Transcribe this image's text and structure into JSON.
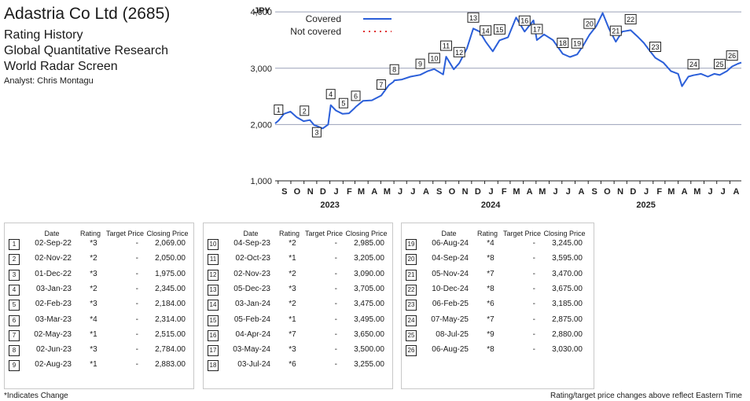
{
  "header": {
    "title": "Adastria Co Ltd (2685)",
    "subtitle1": "Rating History",
    "subtitle2": "Global Quantitative Research",
    "subtitle3": "World Radar Screen",
    "analyst": "Analyst: Chris Montagu"
  },
  "chart_data": {
    "type": "line",
    "ylabel": "JPY",
    "ylim": [
      1000,
      4100
    ],
    "yticks": [
      "1,000",
      "2,000",
      "3,000",
      "4,000"
    ],
    "xlim": [
      "2022-08-25",
      "2025-08-28"
    ],
    "month_labels": [
      "S",
      "O",
      "N",
      "D",
      "J",
      "F",
      "M",
      "A",
      "M",
      "J",
      "J",
      "A",
      "S",
      "O",
      "N",
      "D",
      "J",
      "F",
      "M",
      "A",
      "M",
      "J",
      "J",
      "A",
      "S",
      "O",
      "N",
      "D",
      "J",
      "F",
      "M",
      "A",
      "M",
      "J",
      "J",
      "A"
    ],
    "month_dates": [
      "2022-09-01",
      "2022-10-01",
      "2022-11-01",
      "2022-12-01",
      "2023-01-01",
      "2023-02-01",
      "2023-03-01",
      "2023-04-01",
      "2023-05-01",
      "2023-06-01",
      "2023-07-01",
      "2023-08-01",
      "2023-09-01",
      "2023-10-01",
      "2023-11-01",
      "2023-12-01",
      "2024-01-01",
      "2024-02-01",
      "2024-03-01",
      "2024-04-01",
      "2024-05-01",
      "2024-06-01",
      "2024-07-01",
      "2024-08-01",
      "2024-09-01",
      "2024-10-01",
      "2024-11-01",
      "2024-12-01",
      "2025-01-01",
      "2025-02-01",
      "2025-03-01",
      "2025-04-01",
      "2025-05-01",
      "2025-06-01",
      "2025-07-01",
      "2025-08-01"
    ],
    "year_labels": [
      "2023",
      "2024",
      "2025"
    ],
    "year_centers": [
      "2023-01-01",
      "2024-01-15",
      "2025-01-15"
    ],
    "legend": [
      {
        "name": "Covered",
        "style": "solid",
        "color": "#2b5fd9"
      },
      {
        "name": "Not covered",
        "style": "dotted",
        "color": "#e03030"
      }
    ],
    "grid": true,
    "series": [
      {
        "name": "Covered",
        "points": [
          [
            "2022-08-25",
            2020
          ],
          [
            "2022-09-02",
            2069
          ],
          [
            "2022-09-15",
            2190
          ],
          [
            "2022-09-30",
            2230
          ],
          [
            "2022-10-15",
            2130
          ],
          [
            "2022-10-31",
            2060
          ],
          [
            "2022-11-15",
            2080
          ],
          [
            "2022-11-25",
            1990
          ],
          [
            "2022-12-01",
            1975
          ],
          [
            "2022-12-15",
            1930
          ],
          [
            "2022-12-28",
            2000
          ],
          [
            "2023-01-03",
            2345
          ],
          [
            "2023-01-15",
            2250
          ],
          [
            "2023-01-31",
            2190
          ],
          [
            "2023-02-15",
            2200
          ],
          [
            "2023-02-28",
            2290
          ],
          [
            "2023-03-03",
            2314
          ],
          [
            "2023-03-20",
            2420
          ],
          [
            "2023-04-10",
            2430
          ],
          [
            "2023-04-28",
            2500
          ],
          [
            "2023-05-02",
            2515
          ],
          [
            "2023-05-20",
            2700
          ],
          [
            "2023-05-31",
            2760
          ],
          [
            "2023-06-02",
            2784
          ],
          [
            "2023-06-20",
            2800
          ],
          [
            "2023-07-10",
            2850
          ],
          [
            "2023-08-02",
            2883
          ],
          [
            "2023-08-20",
            2950
          ],
          [
            "2023-09-04",
            2985
          ],
          [
            "2023-09-25",
            2890
          ],
          [
            "2023-10-02",
            3205
          ],
          [
            "2023-10-20",
            2980
          ],
          [
            "2023-11-02",
            3090
          ],
          [
            "2023-11-20",
            3350
          ],
          [
            "2023-12-05",
            3705
          ],
          [
            "2023-12-20",
            3650
          ],
          [
            "2024-01-03",
            3475
          ],
          [
            "2024-01-20",
            3300
          ],
          [
            "2024-02-05",
            3495
          ],
          [
            "2024-02-25",
            3550
          ],
          [
            "2024-03-15",
            3900
          ],
          [
            "2024-04-04",
            3650
          ],
          [
            "2024-04-25",
            3850
          ],
          [
            "2024-05-03",
            3500
          ],
          [
            "2024-05-20",
            3600
          ],
          [
            "2024-06-10",
            3500
          ],
          [
            "2024-07-03",
            3255
          ],
          [
            "2024-07-20",
            3200
          ],
          [
            "2024-08-06",
            3245
          ],
          [
            "2024-08-20",
            3400
          ],
          [
            "2024-09-04",
            3595
          ],
          [
            "2024-09-20",
            3750
          ],
          [
            "2024-10-05",
            3980
          ],
          [
            "2024-10-20",
            3700
          ],
          [
            "2024-11-05",
            3470
          ],
          [
            "2024-11-20",
            3650
          ],
          [
            "2024-12-10",
            3675
          ],
          [
            "2024-12-28",
            3550
          ],
          [
            "2025-01-10",
            3450
          ],
          [
            "2025-01-25",
            3300
          ],
          [
            "2025-02-06",
            3185
          ],
          [
            "2025-02-25",
            3100
          ],
          [
            "2025-03-15",
            2950
          ],
          [
            "2025-04-01",
            2900
          ],
          [
            "2025-04-10",
            2680
          ],
          [
            "2025-04-25",
            2850
          ],
          [
            "2025-05-07",
            2875
          ],
          [
            "2025-05-25",
            2900
          ],
          [
            "2025-06-10",
            2850
          ],
          [
            "2025-06-25",
            2900
          ],
          [
            "2025-07-08",
            2880
          ],
          [
            "2025-07-25",
            2950
          ],
          [
            "2025-08-06",
            3030
          ],
          [
            "2025-08-20",
            3080
          ],
          [
            "2025-08-28",
            3100
          ]
        ]
      }
    ],
    "markers": [
      {
        "n": "1",
        "date": "2022-09-02",
        "value": 2069
      },
      {
        "n": "2",
        "date": "2022-11-02",
        "value": 2050
      },
      {
        "n": "3",
        "date": "2022-12-01",
        "value": 1975
      },
      {
        "n": "4",
        "date": "2023-01-03",
        "value": 2345
      },
      {
        "n": "5",
        "date": "2023-02-02",
        "value": 2184
      },
      {
        "n": "6",
        "date": "2023-03-03",
        "value": 2314
      },
      {
        "n": "7",
        "date": "2023-05-02",
        "value": 2515
      },
      {
        "n": "8",
        "date": "2023-06-02",
        "value": 2784
      },
      {
        "n": "9",
        "date": "2023-08-02",
        "value": 2883
      },
      {
        "n": "10",
        "date": "2023-09-04",
        "value": 2985
      },
      {
        "n": "11",
        "date": "2023-10-02",
        "value": 3205
      },
      {
        "n": "12",
        "date": "2023-11-02",
        "value": 3090
      },
      {
        "n": "13",
        "date": "2023-12-05",
        "value": 3705
      },
      {
        "n": "14",
        "date": "2024-01-03",
        "value": 3475
      },
      {
        "n": "15",
        "date": "2024-02-05",
        "value": 3495
      },
      {
        "n": "16",
        "date": "2024-04-04",
        "value": 3650
      },
      {
        "n": "17",
        "date": "2024-05-03",
        "value": 3500
      },
      {
        "n": "18",
        "date": "2024-07-03",
        "value": 3255
      },
      {
        "n": "19",
        "date": "2024-08-06",
        "value": 3245
      },
      {
        "n": "20",
        "date": "2024-09-04",
        "value": 3595
      },
      {
        "n": "21",
        "date": "2024-11-05",
        "value": 3470
      },
      {
        "n": "22",
        "date": "2024-12-10",
        "value": 3675
      },
      {
        "n": "23",
        "date": "2025-02-06",
        "value": 3185
      },
      {
        "n": "24",
        "date": "2025-05-07",
        "value": 2875
      },
      {
        "n": "25",
        "date": "2025-07-08",
        "value": 2880
      },
      {
        "n": "26",
        "date": "2025-08-06",
        "value": 3030
      }
    ]
  },
  "table": {
    "headers": {
      "date": "Date",
      "rating": "Rating",
      "target": "Target Price",
      "closing": "Closing Price"
    },
    "panels": [
      [
        {
          "n": "1",
          "date": "02-Sep-22",
          "rating": "*3",
          "target": "-",
          "close": "2,069.00"
        },
        {
          "n": "2",
          "date": "02-Nov-22",
          "rating": "*2",
          "target": "-",
          "close": "2,050.00"
        },
        {
          "n": "3",
          "date": "01-Dec-22",
          "rating": "*3",
          "target": "-",
          "close": "1,975.00"
        },
        {
          "n": "4",
          "date": "03-Jan-23",
          "rating": "*2",
          "target": "-",
          "close": "2,345.00"
        },
        {
          "n": "5",
          "date": "02-Feb-23",
          "rating": "*3",
          "target": "-",
          "close": "2,184.00"
        },
        {
          "n": "6",
          "date": "03-Mar-23",
          "rating": "*4",
          "target": "-",
          "close": "2,314.00"
        },
        {
          "n": "7",
          "date": "02-May-23",
          "rating": "*1",
          "target": "-",
          "close": "2,515.00"
        },
        {
          "n": "8",
          "date": "02-Jun-23",
          "rating": "*3",
          "target": "-",
          "close": "2,784.00"
        },
        {
          "n": "9",
          "date": "02-Aug-23",
          "rating": "*1",
          "target": "-",
          "close": "2,883.00"
        }
      ],
      [
        {
          "n": "10",
          "date": "04-Sep-23",
          "rating": "*2",
          "target": "-",
          "close": "2,985.00"
        },
        {
          "n": "11",
          "date": "02-Oct-23",
          "rating": "*1",
          "target": "-",
          "close": "3,205.00"
        },
        {
          "n": "12",
          "date": "02-Nov-23",
          "rating": "*2",
          "target": "-",
          "close": "3,090.00"
        },
        {
          "n": "13",
          "date": "05-Dec-23",
          "rating": "*3",
          "target": "-",
          "close": "3,705.00"
        },
        {
          "n": "14",
          "date": "03-Jan-24",
          "rating": "*2",
          "target": "-",
          "close": "3,475.00"
        },
        {
          "n": "15",
          "date": "05-Feb-24",
          "rating": "*1",
          "target": "-",
          "close": "3,495.00"
        },
        {
          "n": "16",
          "date": "04-Apr-24",
          "rating": "*7",
          "target": "-",
          "close": "3,650.00"
        },
        {
          "n": "17",
          "date": "03-May-24",
          "rating": "*3",
          "target": "-",
          "close": "3,500.00"
        },
        {
          "n": "18",
          "date": "03-Jul-24",
          "rating": "*6",
          "target": "-",
          "close": "3,255.00"
        }
      ],
      [
        {
          "n": "19",
          "date": "06-Aug-24",
          "rating": "*4",
          "target": "-",
          "close": "3,245.00"
        },
        {
          "n": "20",
          "date": "04-Sep-24",
          "rating": "*8",
          "target": "-",
          "close": "3,595.00"
        },
        {
          "n": "21",
          "date": "05-Nov-24",
          "rating": "*7",
          "target": "-",
          "close": "3,470.00"
        },
        {
          "n": "22",
          "date": "10-Dec-24",
          "rating": "*8",
          "target": "-",
          "close": "3,675.00"
        },
        {
          "n": "23",
          "date": "06-Feb-25",
          "rating": "*6",
          "target": "-",
          "close": "3,185.00"
        },
        {
          "n": "24",
          "date": "07-May-25",
          "rating": "*7",
          "target": "-",
          "close": "2,875.00"
        },
        {
          "n": "25",
          "date": "08-Jul-25",
          "rating": "*9",
          "target": "-",
          "close": "2,880.00"
        },
        {
          "n": "26",
          "date": "06-Aug-25",
          "rating": "*8",
          "target": "-",
          "close": "3,030.00"
        }
      ]
    ]
  },
  "footer": {
    "left": "*Indicates Change",
    "right": "Rating/target price changes above reflect Eastern Time"
  }
}
